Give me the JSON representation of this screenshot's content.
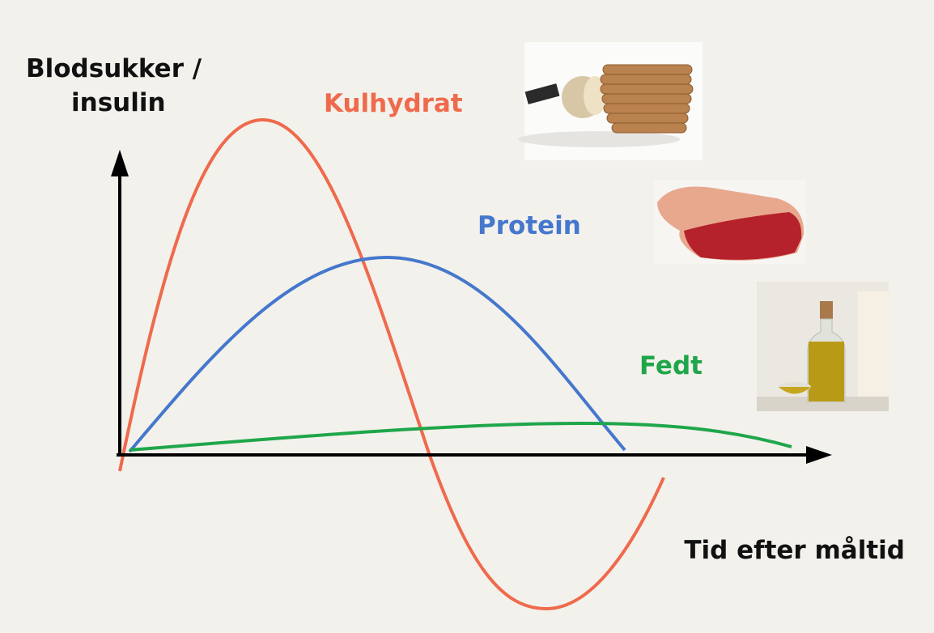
{
  "y_label": [
    "Blodsukker /",
    "insulin"
  ],
  "x_label": "Tid efter måltid",
  "curves": [
    {
      "label": "Kulhydrat"
    },
    {
      "label": "Protein"
    },
    {
      "label": "Fedt"
    }
  ]
}
